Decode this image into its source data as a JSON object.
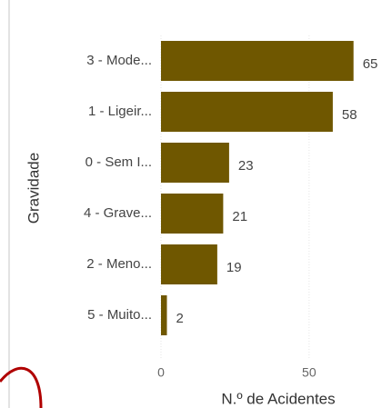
{
  "chart_data": {
    "type": "bar",
    "orientation": "horizontal",
    "y_label": "Gravidade",
    "x_label": "N.º de Acidentes",
    "categories": [
      "3 - Mode...",
      "1 - Ligeir...",
      "0 - Sem I...",
      "4 - Grave...",
      "2 - Meno...",
      "5 - Muito..."
    ],
    "values": [
      65,
      58,
      23,
      21,
      19,
      2
    ],
    "color": "#6f5700",
    "xlim": [
      0,
      74
    ],
    "xticks": [
      0,
      50
    ]
  }
}
